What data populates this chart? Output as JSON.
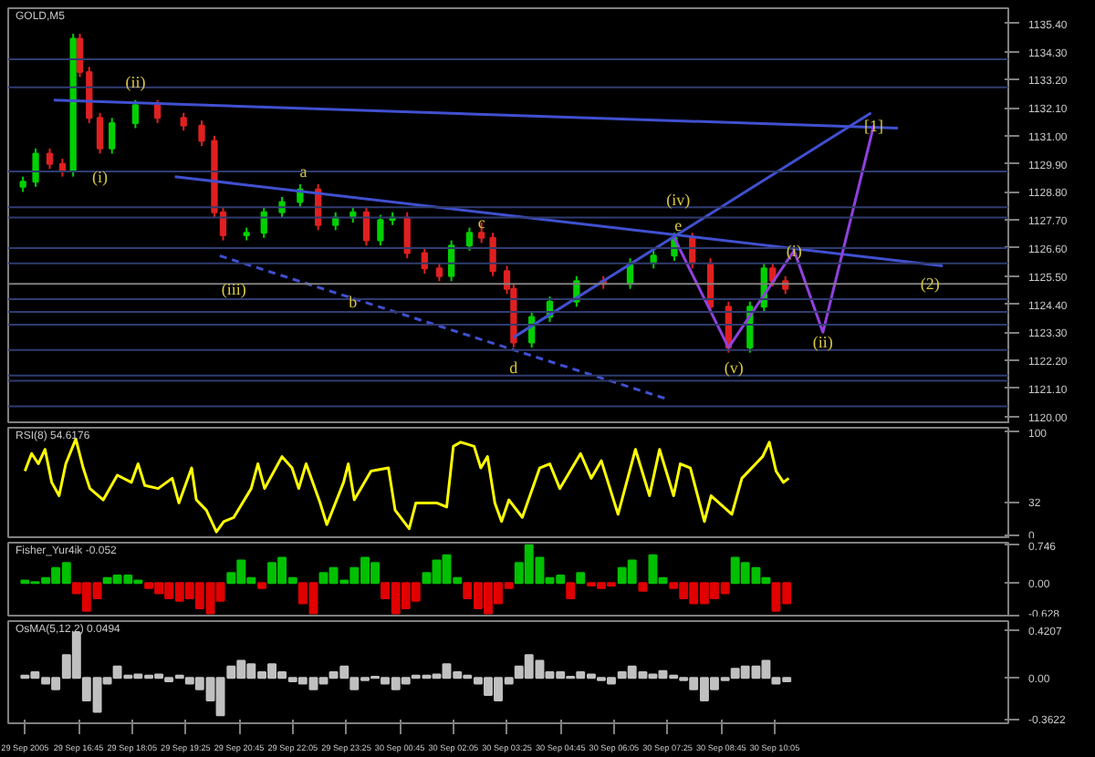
{
  "chart_data": [
    {
      "type": "candlestick",
      "title": "GOLD,M5",
      "x": [
        "2005-09-29T15:22",
        "2005-09-29T15:41",
        "2005-09-29T16:02",
        "2005-09-29T16:21",
        "2005-09-29T16:37",
        "2005-09-29T16:47",
        "2005-09-29T17:01",
        "2005-09-29T17:17",
        "2005-09-29T17:35",
        "2005-09-29T18:10",
        "2005-09-29T18:43",
        "2005-09-29T19:22",
        "2005-09-29T19:49",
        "2005-09-29T20:08",
        "2005-09-29T20:21",
        "2005-09-29T20:56",
        "2005-09-29T21:22",
        "2005-09-29T21:49",
        "2005-09-29T22:16",
        "2005-09-29T22:43",
        "2005-09-29T23:09",
        "2005-09-29T23:35",
        "2005-09-29T23:55",
        "2005-09-30T00:16",
        "2005-09-30T00:34",
        "2005-09-30T00:56",
        "2005-09-30T01:22",
        "2005-09-30T01:44",
        "2005-09-30T02:02",
        "2005-09-30T02:29",
        "2005-09-30T02:47",
        "2005-09-30T03:04",
        "2005-09-30T03:25",
        "2005-09-30T03:35",
        "2005-09-30T04:02",
        "2005-09-30T04:29",
        "2005-09-30T05:09",
        "2005-09-30T05:49",
        "2005-09-30T06:29",
        "2005-09-30T07:04",
        "2005-09-30T07:35",
        "2005-09-30T08:02",
        "2005-09-30T08:29",
        "2005-09-30T08:56",
        "2005-09-30T09:28",
        "2005-09-30T09:49",
        "2005-09-30T10:02",
        "2005-09-30T10:21"
      ],
      "ohlc": [
        [
          1129.0,
          1129.4,
          1128.8,
          1129.2
        ],
        [
          1129.2,
          1130.5,
          1129.0,
          1130.3
        ],
        [
          1130.3,
          1130.5,
          1129.7,
          1129.9
        ],
        [
          1129.9,
          1130.1,
          1129.4,
          1129.6
        ],
        [
          1129.6,
          1135.0,
          1129.4,
          1134.8
        ],
        [
          1134.8,
          1135.0,
          1133.3,
          1133.5
        ],
        [
          1133.5,
          1133.7,
          1131.5,
          1131.7
        ],
        [
          1131.7,
          1131.9,
          1130.3,
          1130.5
        ],
        [
          1130.5,
          1131.7,
          1130.3,
          1131.5
        ],
        [
          1131.5,
          1132.4,
          1131.3,
          1132.2
        ],
        [
          1132.2,
          1132.4,
          1131.5,
          1131.7
        ],
        [
          1131.7,
          1131.9,
          1131.2,
          1131.4
        ],
        [
          1131.4,
          1131.6,
          1130.6,
          1130.8
        ],
        [
          1130.8,
          1131.0,
          1127.8,
          1128.0
        ],
        [
          1128.0,
          1128.2,
          1126.9,
          1127.1
        ],
        [
          1127.1,
          1127.4,
          1126.9,
          1127.2
        ],
        [
          1127.2,
          1128.2,
          1127.0,
          1128.0
        ],
        [
          1128.0,
          1128.6,
          1127.8,
          1128.4
        ],
        [
          1128.4,
          1129.1,
          1128.2,
          1128.9
        ],
        [
          1128.9,
          1129.1,
          1127.3,
          1127.5
        ],
        [
          1127.5,
          1128.0,
          1127.3,
          1127.8
        ],
        [
          1127.8,
          1128.2,
          1127.6,
          1128.0
        ],
        [
          1128.0,
          1128.2,
          1126.7,
          1126.9
        ],
        [
          1126.9,
          1127.9,
          1126.7,
          1127.7
        ],
        [
          1127.7,
          1128.0,
          1127.5,
          1127.8
        ],
        [
          1127.8,
          1128.0,
          1126.2,
          1126.4
        ],
        [
          1126.4,
          1126.6,
          1125.6,
          1125.8
        ],
        [
          1125.8,
          1126.0,
          1125.3,
          1125.5
        ],
        [
          1125.5,
          1126.9,
          1125.3,
          1126.7
        ],
        [
          1126.7,
          1127.4,
          1126.5,
          1127.2
        ],
        [
          1127.2,
          1127.6,
          1126.8,
          1127.0
        ],
        [
          1127.0,
          1127.2,
          1125.5,
          1125.7
        ],
        [
          1125.7,
          1125.9,
          1124.8,
          1125.0
        ],
        [
          1125.0,
          1125.2,
          1122.7,
          1122.9
        ],
        [
          1122.9,
          1124.1,
          1122.7,
          1123.9
        ],
        [
          1123.9,
          1124.7,
          1123.7,
          1124.5
        ],
        [
          1124.5,
          1125.5,
          1124.3,
          1125.3
        ],
        [
          1125.3,
          1125.5,
          1125.0,
          1125.2
        ],
        [
          1125.2,
          1126.2,
          1125.0,
          1126.0
        ],
        [
          1126.0,
          1126.5,
          1125.8,
          1126.3
        ],
        [
          1126.3,
          1127.2,
          1126.1,
          1127.0
        ],
        [
          1127.0,
          1127.2,
          1125.8,
          1126.0
        ],
        [
          1126.0,
          1126.2,
          1124.1,
          1124.3
        ],
        [
          1124.3,
          1124.5,
          1122.5,
          1122.7
        ],
        [
          1122.7,
          1124.5,
          1122.5,
          1124.3
        ],
        [
          1124.3,
          1126.0,
          1124.1,
          1125.8
        ],
        [
          1125.8,
          1126.0,
          1125.1,
          1125.3
        ],
        [
          1125.3,
          1125.5,
          1124.8,
          1125.0
        ]
      ],
      "colors": [
        "#00d000",
        "#00d000",
        "#e02020",
        "#e02020",
        "#00d000",
        "#e02020",
        "#e02020",
        "#e02020",
        "#00d000",
        "#00d000",
        "#e02020",
        "#e02020",
        "#e02020",
        "#e02020",
        "#e02020",
        "#00d000",
        "#00d000",
        "#00d000",
        "#00d000",
        "#e02020",
        "#00d000",
        "#00d000",
        "#e02020",
        "#00d000",
        "#00d000",
        "#e02020",
        "#e02020",
        "#e02020",
        "#00d000",
        "#00d000",
        "#e02020",
        "#e02020",
        "#e02020",
        "#e02020",
        "#00d000",
        "#00d000",
        "#00d000",
        "#e02020",
        "#00d000",
        "#00d000",
        "#00d000",
        "#e02020",
        "#e02020",
        "#e02020",
        "#00d000",
        "#00d000",
        "#e02020",
        "#e02020"
      ],
      "series": [
        {
          "type": "line",
          "color": "#4050d0",
          "x": [
            "2005-09-29T16:08",
            "2005-09-30T13:09"
          ],
          "values": [
            1132.4,
            1131.3
          ]
        },
        {
          "type": "line",
          "color": "#4050d0",
          "x": [
            "2005-09-29T19:09",
            "2005-09-30T14:16"
          ],
          "values": [
            1129.4,
            1125.9
          ]
        },
        {
          "type": "line",
          "color": "#4050d0",
          "line_style": "dashed",
          "x": [
            "2005-09-29T20:16",
            "2005-09-30T07:22"
          ],
          "values": [
            1126.3,
            1120.7
          ]
        },
        {
          "type": "line",
          "color": "#4050d0",
          "x": [
            "2005-09-30T03:35",
            "2005-09-30T12:29"
          ],
          "values": [
            1123.1,
            1131.9
          ]
        },
        {
          "type": "line",
          "color": "#9040e0",
          "x": [
            "2005-09-30T07:35",
            "2005-09-30T08:56",
            "2005-09-30T10:34",
            "2005-09-30T11:17",
            "2005-09-30T12:33"
          ],
          "values": [
            1127.0,
            1122.7,
            1126.5,
            1123.3,
            1131.4
          ]
        }
      ],
      "annotations": [
        {
          "text": "(i)",
          "x": "2005-09-29T17:17",
          "y": 1129.4
        },
        {
          "text": "(ii)",
          "x": "2005-09-29T18:10",
          "y": 1133.1
        },
        {
          "text": "(iii)",
          "x": "2005-09-29T20:37",
          "y": 1125.0
        },
        {
          "text": "a",
          "x": "2005-09-29T22:21",
          "y": 1129.6
        },
        {
          "text": "b",
          "x": "2005-09-29T23:35",
          "y": 1124.5
        },
        {
          "text": "c",
          "x": "2005-09-30T02:47",
          "y": 1127.6
        },
        {
          "text": "d",
          "x": "2005-09-30T03:35",
          "y": 1121.9
        },
        {
          "text": "e",
          "x": "2005-09-30T07:41",
          "y": 1127.5
        },
        {
          "text": "(iv)",
          "x": "2005-09-30T07:41",
          "y": 1128.5
        },
        {
          "text": "(v)",
          "x": "2005-09-30T09:04",
          "y": 1121.9
        },
        {
          "text": "(i)",
          "x": "2005-09-30T10:34",
          "y": 1126.5
        },
        {
          "text": "(ii)",
          "x": "2005-09-30T11:17",
          "y": 1122.9
        },
        {
          "text": "[1]",
          "x": "2005-09-30T12:33",
          "y": 1131.4
        },
        {
          "text": "(2)",
          "x": "2005-09-30T13:57",
          "y": 1125.2
        }
      ],
      "ref_lines": [
        {
          "axis": "y",
          "value": 1125.2,
          "color": "#808080"
        },
        {
          "axis": "y",
          "value": 1134.0,
          "color": "#303c70"
        },
        {
          "axis": "y",
          "value": 1132.9,
          "color": "#303c70"
        },
        {
          "axis": "y",
          "value": 1129.6,
          "color": "#303c70"
        },
        {
          "axis": "y",
          "value": 1128.2,
          "color": "#303c70"
        },
        {
          "axis": "y",
          "value": 1127.8,
          "color": "#303c70"
        },
        {
          "axis": "y",
          "value": 1126.6,
          "color": "#303c70"
        },
        {
          "axis": "y",
          "value": 1126.0,
          "color": "#303c70"
        },
        {
          "axis": "y",
          "value": 1124.6,
          "color": "#303c70"
        },
        {
          "axis": "y",
          "value": 1124.1,
          "color": "#303c70"
        },
        {
          "axis": "y",
          "value": 1123.6,
          "color": "#303c70"
        },
        {
          "axis": "y",
          "value": 1122.6,
          "color": "#303c70"
        },
        {
          "axis": "y",
          "value": 1121.6,
          "color": "#303c70"
        },
        {
          "axis": "y",
          "value": 1121.4,
          "color": "#303c70"
        },
        {
          "axis": "y",
          "value": 1120.4,
          "color": "#303c70"
        }
      ],
      "xlim": [
        "2005-09-29T15:00",
        "2005-09-30T15:54"
      ],
      "ylim": [
        1119.7,
        1136.0
      ],
      "yticks": [
        {
          "value": 1120.0,
          "label": "1120.00"
        },
        {
          "value": 1121.1,
          "label": "1121.10"
        },
        {
          "value": 1122.2,
          "label": "1122.20"
        },
        {
          "value": 1123.3,
          "label": "1123.30"
        },
        {
          "value": 1124.4,
          "label": "1124.40"
        },
        {
          "value": 1125.5,
          "label": "1125.50"
        },
        {
          "value": 1126.6,
          "label": "1126.60"
        },
        {
          "value": 1127.7,
          "label": "1127.70"
        },
        {
          "value": 1128.8,
          "label": "1128.80"
        },
        {
          "value": 1129.9,
          "label": "1129.90"
        },
        {
          "value": 1131.0,
          "label": "1131.00"
        },
        {
          "value": 1132.1,
          "label": "1132.10"
        },
        {
          "value": 1133.2,
          "label": "1133.20"
        },
        {
          "value": 1134.3,
          "label": "1134.30"
        },
        {
          "value": 1135.4,
          "label": "1135.40"
        }
      ],
      "tick_labels": "y"
    },
    {
      "type": "line",
      "title": "RSI(8) 54.6176",
      "x": [
        "2005-09-29T15:25",
        "2005-09-29T15:35",
        "2005-09-29T15:45",
        "2005-09-29T15:55",
        "2005-09-29T16:05",
        "2005-09-29T16:16",
        "2005-09-29T16:26",
        "2005-09-29T16:41",
        "2005-09-29T16:52",
        "2005-09-29T17:02",
        "2005-09-29T17:22",
        "2005-09-29T17:43",
        "2005-09-29T18:04",
        "2005-09-29T18:14",
        "2005-09-29T18:24",
        "2005-09-29T18:44",
        "2005-09-29T19:05",
        "2005-09-29T19:15",
        "2005-09-29T19:34",
        "2005-09-29T19:41",
        "2005-09-29T19:56",
        "2005-09-29T20:11",
        "2005-09-29T20:22",
        "2005-09-29T20:37",
        "2005-09-29T21:03",
        "2005-09-29T21:13",
        "2005-09-29T21:23",
        "2005-09-29T21:49",
        "2005-09-29T22:04",
        "2005-09-29T22:14",
        "2005-09-29T22:25",
        "2005-09-29T22:46",
        "2005-09-29T22:56",
        "2005-09-29T23:21",
        "2005-09-29T23:28",
        "2005-09-29T23:37",
        "2005-09-30T00:02",
        "2005-09-30T00:28",
        "2005-09-30T00:38",
        "2005-09-30T00:59",
        "2005-09-30T01:09",
        "2005-09-30T01:40",
        "2005-09-30T01:55",
        "2005-09-30T02:05",
        "2005-09-30T02:16",
        "2005-09-30T02:36",
        "2005-09-30T02:46",
        "2005-09-30T02:56",
        "2005-09-30T03:07",
        "2005-09-30T03:17",
        "2005-09-30T03:28",
        "2005-09-30T03:48",
        "2005-09-30T04:14",
        "2005-09-30T04:29",
        "2005-09-30T04:44",
        "2005-09-30T05:15",
        "2005-09-30T05:31",
        "2005-09-30T05:46",
        "2005-09-30T06:11",
        "2005-09-30T06:37",
        "2005-09-30T06:58",
        "2005-09-30T07:13",
        "2005-09-30T07:34",
        "2005-09-30T07:44",
        "2005-09-30T07:59",
        "2005-09-30T08:20",
        "2005-09-30T08:30",
        "2005-09-30T09:01",
        "2005-09-30T09:16",
        "2005-09-30T09:47",
        "2005-09-30T09:57",
        "2005-09-30T10:07",
        "2005-09-30T10:18",
        "2005-09-30T10:26"
      ],
      "series": [
        {
          "color": "#ffff00",
          "values": [
            62,
            79,
            69,
            83,
            51,
            38,
            69,
            93,
            65,
            45,
            34,
            58,
            51,
            69,
            48,
            45,
            55,
            31,
            65,
            34,
            24,
            3,
            13,
            17,
            45,
            69,
            45,
            76,
            65,
            45,
            69,
            31,
            10,
            51,
            69,
            34,
            62,
            65,
            24,
            6,
            31,
            31,
            27,
            86,
            90,
            86,
            65,
            76,
            31,
            13,
            34,
            17,
            65,
            69,
            45,
            79,
            55,
            72,
            20,
            83,
            38,
            83,
            38,
            69,
            65,
            13,
            38,
            20,
            55,
            76,
            90,
            62,
            51,
            55
          ]
        }
      ],
      "xlim": [
        "2005-09-29T15:00",
        "2005-09-30T15:54"
      ],
      "ylim": [
        -4,
        104
      ],
      "yticks": [
        0,
        32,
        100
      ],
      "tick_labels": "y"
    },
    {
      "type": "bar",
      "title": "Fisher_Yur4ik -0.052",
      "x": [
        "2005-09-29T15:25",
        "2005-09-29T15:40",
        "2005-09-29T15:56",
        "2005-09-29T16:11",
        "2005-09-29T16:27",
        "2005-09-29T16:42",
        "2005-09-29T16:57",
        "2005-09-29T17:13",
        "2005-09-29T17:28",
        "2005-09-29T17:43",
        "2005-09-29T17:59",
        "2005-09-29T18:14",
        "2005-09-29T18:30",
        "2005-09-29T18:45",
        "2005-09-29T19:00",
        "2005-09-29T19:16",
        "2005-09-29T19:31",
        "2005-09-29T19:46",
        "2005-09-29T20:02",
        "2005-09-29T20:17",
        "2005-09-29T20:33",
        "2005-09-29T20:48",
        "2005-09-29T21:03",
        "2005-09-29T21:19",
        "2005-09-29T21:34",
        "2005-09-29T21:49",
        "2005-09-29T22:05",
        "2005-09-29T22:20",
        "2005-09-29T22:36",
        "2005-09-29T22:51",
        "2005-09-29T23:06",
        "2005-09-29T23:22",
        "2005-09-29T23:37",
        "2005-09-29T23:53",
        "2005-09-30T00:08",
        "2005-09-30T00:23",
        "2005-09-30T00:39",
        "2005-09-30T00:54",
        "2005-09-30T01:09",
        "2005-09-30T01:25",
        "2005-09-30T01:40",
        "2005-09-30T01:55",
        "2005-09-30T02:11",
        "2005-09-30T02:26",
        "2005-09-30T02:42",
        "2005-09-30T02:57",
        "2005-09-30T03:12",
        "2005-09-30T03:28",
        "2005-09-30T03:43",
        "2005-09-30T03:58",
        "2005-09-30T04:14",
        "2005-09-30T04:29",
        "2005-09-30T04:45",
        "2005-09-30T05:00",
        "2005-09-30T05:15",
        "2005-09-30T05:31",
        "2005-09-30T05:46",
        "2005-09-30T06:01",
        "2005-09-30T06:17",
        "2005-09-30T06:32",
        "2005-09-30T06:48",
        "2005-09-30T07:03",
        "2005-09-30T07:18",
        "2005-09-30T07:34",
        "2005-09-30T07:49",
        "2005-09-30T08:04",
        "2005-09-30T08:20",
        "2005-09-30T08:35",
        "2005-09-30T08:51",
        "2005-09-30T09:06",
        "2005-09-30T09:21",
        "2005-09-30T09:37",
        "2005-09-30T09:52",
        "2005-09-30T10:07",
        "2005-09-30T10:23"
      ],
      "values": [
        0.05,
        0.02,
        0.1,
        0.3,
        0.4,
        -0.2,
        -0.55,
        -0.3,
        0.1,
        0.15,
        0.15,
        0.05,
        -0.1,
        -0.2,
        -0.3,
        -0.35,
        -0.3,
        -0.5,
        -0.6,
        -0.35,
        0.2,
        0.45,
        0.1,
        -0.1,
        0.4,
        0.5,
        0.1,
        -0.4,
        -0.6,
        0.2,
        0.3,
        0.05,
        0.3,
        0.5,
        0.4,
        -0.3,
        -0.6,
        -0.5,
        -0.35,
        0.2,
        0.45,
        0.55,
        0.1,
        -0.3,
        -0.5,
        -0.6,
        -0.4,
        -0.1,
        0.4,
        0.75,
        0.5,
        0.1,
        0.15,
        -0.3,
        0.2,
        -0.05,
        -0.1,
        -0.05,
        0.3,
        0.45,
        -0.15,
        0.55,
        0.1,
        -0.1,
        -0.3,
        -0.4,
        -0.4,
        -0.3,
        -0.2,
        0.5,
        0.4,
        0.3,
        0.1,
        -0.55,
        -0.4
      ],
      "colors": [
        "#00c000",
        "#00c000",
        "#00c000",
        "#00c000",
        "#00c000",
        "#e00000",
        "#e00000",
        "#e00000",
        "#00c000",
        "#00c000",
        "#00c000",
        "#00c000",
        "#e00000",
        "#e00000",
        "#e00000",
        "#e00000",
        "#e00000",
        "#e00000",
        "#e00000",
        "#e00000",
        "#00c000",
        "#00c000",
        "#00c000",
        "#e00000",
        "#00c000",
        "#00c000",
        "#00c000",
        "#e00000",
        "#e00000",
        "#00c000",
        "#00c000",
        "#00c000",
        "#00c000",
        "#00c000",
        "#00c000",
        "#e00000",
        "#e00000",
        "#e00000",
        "#e00000",
        "#00c000",
        "#00c000",
        "#00c000",
        "#00c000",
        "#e00000",
        "#e00000",
        "#e00000",
        "#e00000",
        "#e00000",
        "#00c000",
        "#00c000",
        "#00c000",
        "#00c000",
        "#00c000",
        "#e00000",
        "#00c000",
        "#e00000",
        "#e00000",
        "#e00000",
        "#00c000",
        "#00c000",
        "#e00000",
        "#00c000",
        "#00c000",
        "#e00000",
        "#e00000",
        "#e00000",
        "#e00000",
        "#e00000",
        "#e00000",
        "#00c000",
        "#00c000",
        "#00c000",
        "#00c000",
        "#e00000",
        "#e00000"
      ],
      "xlim": [
        "2005-09-29T15:00",
        "2005-09-30T15:54"
      ],
      "ylim": [
        -0.68,
        0.8
      ],
      "yticks": [
        {
          "value": -0.628,
          "label": "-0.628"
        },
        {
          "value": 0,
          "label": "0.00"
        },
        {
          "value": 0.746,
          "label": "0.746"
        }
      ],
      "tick_labels": "y"
    },
    {
      "type": "bar",
      "title": "OsMA(5,12,2) 0.0494",
      "x": [
        "2005-09-29T15:25",
        "2005-09-29T15:40",
        "2005-09-29T15:56",
        "2005-09-29T16:11",
        "2005-09-29T16:27",
        "2005-09-29T16:42",
        "2005-09-29T16:57",
        "2005-09-29T17:13",
        "2005-09-29T17:28",
        "2005-09-29T17:43",
        "2005-09-29T17:59",
        "2005-09-29T18:14",
        "2005-09-29T18:30",
        "2005-09-29T18:45",
        "2005-09-29T19:00",
        "2005-09-29T19:16",
        "2005-09-29T19:31",
        "2005-09-29T19:46",
        "2005-09-29T20:02",
        "2005-09-29T20:17",
        "2005-09-29T20:33",
        "2005-09-29T20:48",
        "2005-09-29T21:03",
        "2005-09-29T21:19",
        "2005-09-29T21:34",
        "2005-09-29T21:49",
        "2005-09-29T22:05",
        "2005-09-29T22:20",
        "2005-09-29T22:36",
        "2005-09-29T22:51",
        "2005-09-29T23:06",
        "2005-09-29T23:22",
        "2005-09-29T23:37",
        "2005-09-29T23:53",
        "2005-09-30T00:08",
        "2005-09-30T00:23",
        "2005-09-30T00:39",
        "2005-09-30T00:54",
        "2005-09-30T01:09",
        "2005-09-30T01:25",
        "2005-09-30T01:40",
        "2005-09-30T01:55",
        "2005-09-30T02:11",
        "2005-09-30T02:26",
        "2005-09-30T02:42",
        "2005-09-30T02:57",
        "2005-09-30T03:12",
        "2005-09-30T03:28",
        "2005-09-30T03:43",
        "2005-09-30T03:58",
        "2005-09-30T04:14",
        "2005-09-30T04:29",
        "2005-09-30T04:45",
        "2005-09-30T05:00",
        "2005-09-30T05:15",
        "2005-09-30T05:31",
        "2005-09-30T05:46",
        "2005-09-30T06:01",
        "2005-09-30T06:17",
        "2005-09-30T06:32",
        "2005-09-30T06:48",
        "2005-09-30T07:03",
        "2005-09-30T07:18",
        "2005-09-30T07:34",
        "2005-09-30T07:49",
        "2005-09-30T08:04",
        "2005-09-30T08:20",
        "2005-09-30T08:35",
        "2005-09-30T08:51",
        "2005-09-30T09:06",
        "2005-09-30T09:21",
        "2005-09-30T09:37",
        "2005-09-30T09:52",
        "2005-09-30T10:07",
        "2005-09-30T10:23"
      ],
      "values": [
        0.02,
        0.05,
        -0.05,
        -0.1,
        0.2,
        0.4,
        -0.2,
        -0.3,
        -0.05,
        0.1,
        0.02,
        0.03,
        0.02,
        0.03,
        -0.03,
        0.02,
        -0.05,
        -0.1,
        -0.2,
        -0.33,
        0.1,
        0.15,
        0.12,
        0.05,
        0.12,
        0.05,
        -0.03,
        -0.05,
        -0.1,
        -0.05,
        0.05,
        0.1,
        -0.1,
        -0.02,
        0.01,
        -0.05,
        -0.1,
        -0.05,
        0.02,
        0.02,
        0.03,
        0.12,
        0.05,
        0.02,
        -0.05,
        -0.15,
        -0.2,
        -0.05,
        0.1,
        0.2,
        0.15,
        0.05,
        0.05,
        0.01,
        0.05,
        0.03,
        -0.02,
        -0.05,
        0.05,
        0.1,
        0.05,
        0.03,
        0.06,
        0.02,
        -0.02,
        -0.1,
        -0.2,
        -0.1,
        -0.02,
        0.08,
        0.1,
        0.1,
        0.15,
        -0.05,
        -0.03
      ],
      "color": "#c0c0c0",
      "xlim": [
        "2005-09-29T15:00",
        "2005-09-30T15:54"
      ],
      "ylim": [
        -0.4,
        0.5
      ],
      "yticks": [
        {
          "value": -0.3622,
          "label": "-0.3622"
        },
        {
          "value": 0,
          "label": "0.00"
        },
        {
          "value": 0.4207,
          "label": "0.4207"
        }
      ],
      "xticks": [
        {
          "value": "2005-09-29T15:25",
          "label": "29 Sep 2005"
        },
        {
          "value": "2005-09-29T16:45",
          "label": "29 Sep 16:45"
        },
        {
          "value": "2005-09-29T18:05",
          "label": "29 Sep 18:05"
        },
        {
          "value": "2005-09-29T19:25",
          "label": "29 Sep 19:25"
        },
        {
          "value": "2005-09-29T20:45",
          "label": "29 Sep 20:45"
        },
        {
          "value": "2005-09-29T22:05",
          "label": "29 Sep 22:05"
        },
        {
          "value": "2005-09-29T23:25",
          "label": "29 Sep 23:25"
        },
        {
          "value": "2005-09-30T00:45",
          "label": "30 Sep 00:45"
        },
        {
          "value": "2005-09-30T02:05",
          "label": "30 Sep 02:05"
        },
        {
          "value": "2005-09-30T03:25",
          "label": "30 Sep 03:25"
        },
        {
          "value": "2005-09-30T04:45",
          "label": "30 Sep 04:45"
        },
        {
          "value": "2005-09-30T06:05",
          "label": "30 Sep 06:05"
        },
        {
          "value": "2005-09-30T07:25",
          "label": "30 Sep 07:25"
        },
        {
          "value": "2005-09-30T08:45",
          "label": "30 Sep 08:45"
        },
        {
          "value": "2005-09-30T10:05",
          "label": "30 Sep 10:05"
        }
      ]
    }
  ]
}
